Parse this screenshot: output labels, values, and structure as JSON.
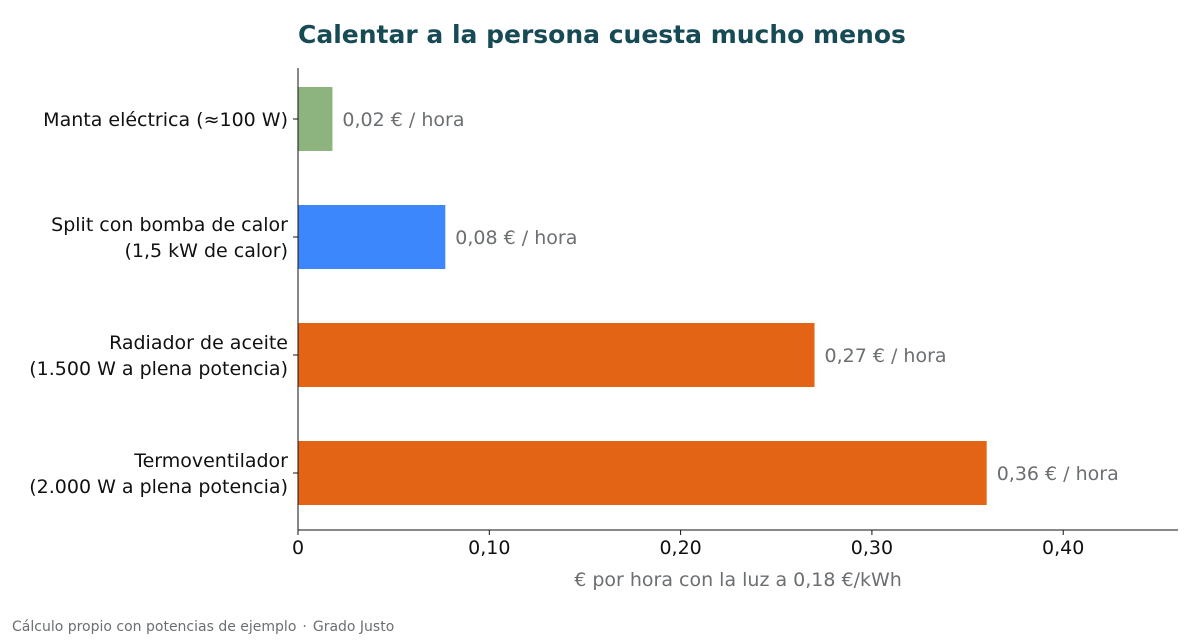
{
  "chart_data": {
    "type": "bar",
    "orientation": "horizontal",
    "title": "Calentar a la persona cuesta mucho menos",
    "categories": [
      [
        "Manta eléctrica (≈100 W)"
      ],
      [
        "Split con bomba de calor",
        "(1,5 kW de calor)"
      ],
      [
        "Radiador de aceite",
        "(1.500 W a plena potencia)"
      ],
      [
        "Termoventilador",
        "(2.000 W a plena potencia)"
      ]
    ],
    "values": [
      0.018,
      0.077,
      0.27,
      0.36
    ],
    "value_labels": [
      "0,02 € / hora",
      "0,08 € / hora",
      "0,27 € / hora",
      "0,36 € / hora"
    ],
    "bar_colors": [
      "#8db37e",
      "#3b87fb",
      "#e36414",
      "#e36414"
    ],
    "xlabel": "€ por hora con la luz a 0,18 €/kWh",
    "ylabel": "",
    "xlim": [
      0,
      0.46
    ],
    "xticks": [
      0,
      0.1,
      0.2,
      0.3,
      0.4
    ],
    "xtick_labels": [
      "0",
      "0,10",
      "0,20",
      "0,30",
      "0,40"
    ],
    "grid": false,
    "legend": "none",
    "colors": {
      "title": "#164a55",
      "muted_text": "#6b6f72",
      "axis": "#111111"
    }
  },
  "footer": {
    "source": "Cálculo propio con potencias de ejemplo",
    "separator": "·",
    "brand": "Grado Justo"
  }
}
